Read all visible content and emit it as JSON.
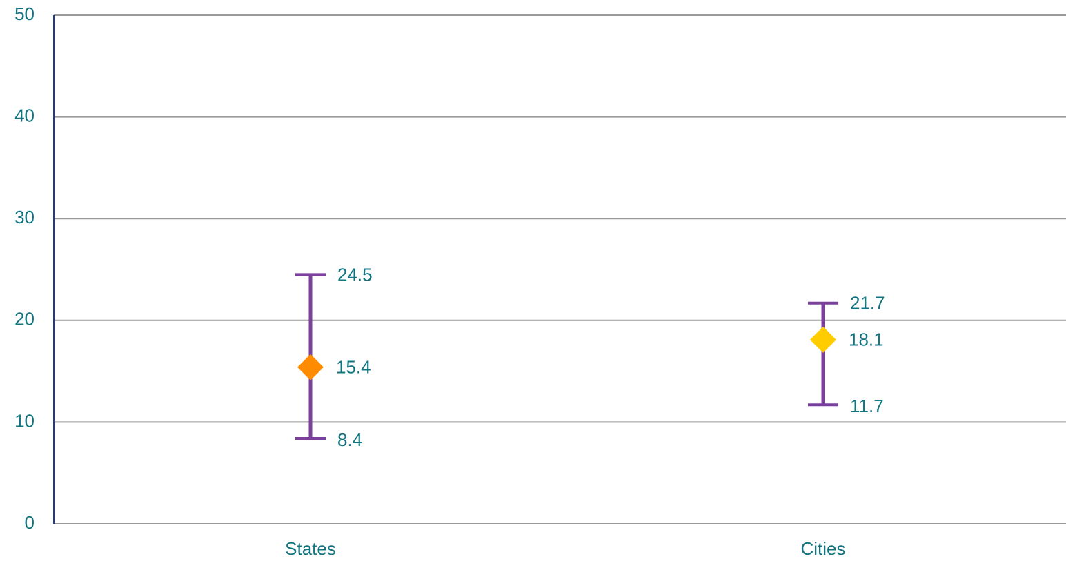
{
  "chart_data": {
    "type": "high-low-mean",
    "categories": [
      "States",
      "Cities"
    ],
    "high": [
      24.5,
      21.7
    ],
    "low": [
      8.4,
      11.7
    ],
    "mean": [
      15.4,
      18.1
    ],
    "marker_colors": [
      "#ff8c00",
      "#ffcc00"
    ],
    "range_color": "#7b3f9e",
    "ylim": [
      0,
      50
    ],
    "yticks": [
      0,
      10,
      20,
      30,
      40,
      50
    ],
    "grid": true
  }
}
